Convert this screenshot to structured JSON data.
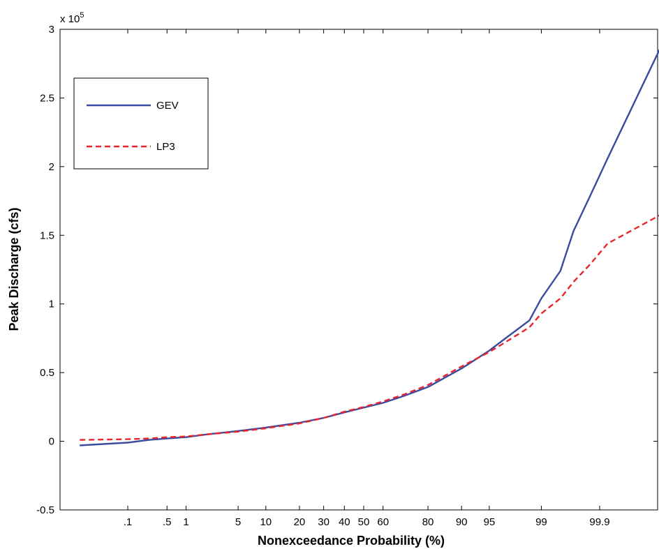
{
  "chart_data": {
    "type": "line",
    "xlabel": "Nonexceedance Probability (%)",
    "ylabel": "Peak Discharge (cfs)",
    "y_multiplier": "x 10",
    "y_multiplier_exp": "5",
    "ylim": [
      -0.5,
      3
    ],
    "yticks": [
      {
        "value": -0.5,
        "label": "-0.5"
      },
      {
        "value": 0,
        "label": "0"
      },
      {
        "value": 0.5,
        "label": "0.5"
      },
      {
        "value": 1,
        "label": "1"
      },
      {
        "value": 1.5,
        "label": "1.5"
      },
      {
        "value": 2,
        "label": "2"
      },
      {
        "value": 2.5,
        "label": "2.5"
      },
      {
        "value": 3,
        "label": "3"
      }
    ],
    "xticks": [
      {
        "value": 0.1,
        "label": ".1"
      },
      {
        "value": 0.5,
        "label": ".5"
      },
      {
        "value": 1,
        "label": "1"
      },
      {
        "value": 5,
        "label": "5"
      },
      {
        "value": 10,
        "label": "10"
      },
      {
        "value": 20,
        "label": "20"
      },
      {
        "value": 30,
        "label": "30"
      },
      {
        "value": 40,
        "label": "40"
      },
      {
        "value": 50,
        "label": "50"
      },
      {
        "value": 60,
        "label": "60"
      },
      {
        "value": 80,
        "label": "80"
      },
      {
        "value": 90,
        "label": "90"
      },
      {
        "value": 95,
        "label": "95"
      },
      {
        "value": 99,
        "label": "99"
      },
      {
        "value": 99.9,
        "label": "99.9"
      }
    ],
    "legend_position": "top-left",
    "grid": false,
    "series": [
      {
        "name": "GEV",
        "color": "#3a4aa0",
        "dash": "solid",
        "points": [
          [
            0.01,
            -0.03
          ],
          [
            0.1,
            -0.01
          ],
          [
            0.25,
            0.01
          ],
          [
            0.5,
            0.02
          ],
          [
            1,
            0.03
          ],
          [
            2,
            0.05
          ],
          [
            5,
            0.075
          ],
          [
            10,
            0.1
          ],
          [
            20,
            0.135
          ],
          [
            30,
            0.17
          ],
          [
            40,
            0.21
          ],
          [
            50,
            0.245
          ],
          [
            60,
            0.28
          ],
          [
            70,
            0.33
          ],
          [
            80,
            0.395
          ],
          [
            90,
            0.53
          ],
          [
            95,
            0.66
          ],
          [
            97,
            0.76
          ],
          [
            98.5,
            0.88
          ],
          [
            99,
            1.04
          ],
          [
            99.5,
            1.24
          ],
          [
            99.7,
            1.53
          ],
          [
            99.85,
            1.79
          ],
          [
            99.93,
            2.06
          ],
          [
            99.995,
            2.87
          ]
        ]
      },
      {
        "name": "LP3",
        "color": "#e8262b",
        "dash": "dashed",
        "points": [
          [
            0.01,
            0.01
          ],
          [
            0.1,
            0.015
          ],
          [
            0.25,
            0.02
          ],
          [
            0.5,
            0.03
          ],
          [
            1,
            0.035
          ],
          [
            2,
            0.05
          ],
          [
            5,
            0.07
          ],
          [
            10,
            0.095
          ],
          [
            20,
            0.13
          ],
          [
            30,
            0.17
          ],
          [
            40,
            0.215
          ],
          [
            50,
            0.25
          ],
          [
            60,
            0.29
          ],
          [
            70,
            0.34
          ],
          [
            80,
            0.41
          ],
          [
            90,
            0.545
          ],
          [
            95,
            0.65
          ],
          [
            97,
            0.73
          ],
          [
            98.5,
            0.83
          ],
          [
            99,
            0.93
          ],
          [
            99.5,
            1.04
          ],
          [
            99.7,
            1.16
          ],
          [
            99.85,
            1.29
          ],
          [
            99.93,
            1.44
          ],
          [
            99.995,
            1.65
          ]
        ]
      }
    ]
  }
}
